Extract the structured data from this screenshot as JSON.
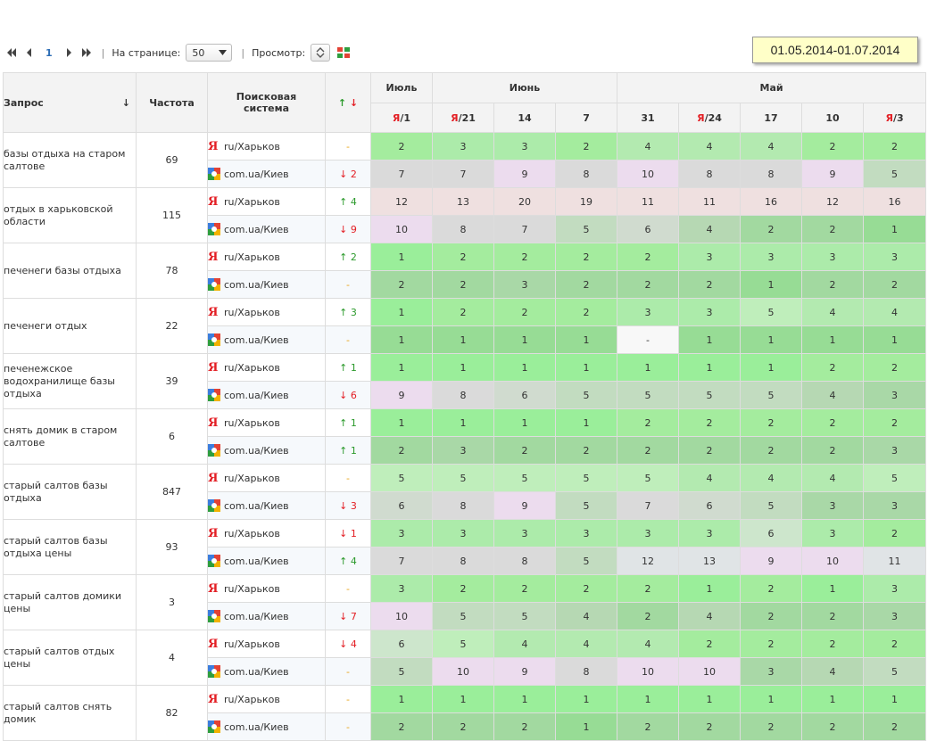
{
  "toolbar": {
    "page": "1",
    "per_page_label": "На странице:",
    "per_page_value": "50",
    "view_label": "Просмотр:"
  },
  "date_range": "01.05.2014-01.07.2014",
  "headers": {
    "query": "Запрос",
    "sort_icon": "arrow-down-icon",
    "sort_glyph": "↓",
    "frequency": "Частота",
    "engine": "Поисковая система",
    "change_up": "↑",
    "change_down": "↓",
    "months": [
      {
        "name": "Июль",
        "span": 1
      },
      {
        "name": "Июнь",
        "span": 3
      },
      {
        "name": "Май",
        "span": 5
      }
    ],
    "dates": [
      {
        "ya": true,
        "label": "/1"
      },
      {
        "ya": true,
        "label": "/21"
      },
      {
        "ya": false,
        "label": "14"
      },
      {
        "ya": false,
        "label": "7"
      },
      {
        "ya": false,
        "label": "31"
      },
      {
        "ya": true,
        "label": "/24"
      },
      {
        "ya": false,
        "label": "17"
      },
      {
        "ya": false,
        "label": "10"
      },
      {
        "ya": true,
        "label": "/3"
      }
    ],
    "ya_letter": "Я"
  },
  "engines": {
    "yandex": {
      "label": "ru/Харьков",
      "icon": "yandex-icon"
    },
    "google": {
      "label": "com.ua/Киев",
      "icon": "google-icon"
    }
  },
  "rows": [
    {
      "query": "базы отдыха на старом салтове",
      "freq": "69",
      "ya": {
        "change": "-",
        "dir": "none",
        "values": [
          "2",
          "3",
          "3",
          "2",
          "4",
          "4",
          "4",
          "2",
          "2"
        ]
      },
      "go": {
        "change": "2",
        "dir": "down",
        "values": [
          "7",
          "7",
          "9",
          "8",
          "10",
          "8",
          "8",
          "9",
          "5"
        ]
      }
    },
    {
      "query": "отдых в харьковской области",
      "freq": "115",
      "ya": {
        "change": "4",
        "dir": "up",
        "values": [
          "12",
          "13",
          "20",
          "19",
          "11",
          "11",
          "16",
          "12",
          "16"
        ]
      },
      "go": {
        "change": "9",
        "dir": "down",
        "values": [
          "10",
          "8",
          "7",
          "5",
          "6",
          "4",
          "2",
          "2",
          "1"
        ]
      }
    },
    {
      "query": "печенеги базы отдыха",
      "freq": "78",
      "ya": {
        "change": "2",
        "dir": "up",
        "values": [
          "1",
          "2",
          "2",
          "2",
          "2",
          "3",
          "3",
          "3",
          "3"
        ]
      },
      "go": {
        "change": "-",
        "dir": "none",
        "values": [
          "2",
          "2",
          "3",
          "2",
          "2",
          "2",
          "1",
          "2",
          "2"
        ]
      }
    },
    {
      "query": "печенеги отдых",
      "freq": "22",
      "ya": {
        "change": "3",
        "dir": "up",
        "values": [
          "1",
          "2",
          "2",
          "2",
          "3",
          "3",
          "5",
          "4",
          "4"
        ]
      },
      "go": {
        "change": "-",
        "dir": "none",
        "values": [
          "1",
          "1",
          "1",
          "1",
          "-",
          "1",
          "1",
          "1",
          "1"
        ]
      }
    },
    {
      "query": "печенежское водохранилище базы отдыха",
      "freq": "39",
      "ya": {
        "change": "1",
        "dir": "up",
        "values": [
          "1",
          "1",
          "1",
          "1",
          "1",
          "1",
          "1",
          "2",
          "2"
        ]
      },
      "go": {
        "change": "6",
        "dir": "down",
        "values": [
          "9",
          "8",
          "6",
          "5",
          "5",
          "5",
          "5",
          "4",
          "3"
        ]
      }
    },
    {
      "query": "снять домик в старом салтове",
      "freq": "6",
      "ya": {
        "change": "1",
        "dir": "up",
        "values": [
          "1",
          "1",
          "1",
          "1",
          "2",
          "2",
          "2",
          "2",
          "2"
        ]
      },
      "go": {
        "change": "1",
        "dir": "up",
        "values": [
          "2",
          "3",
          "2",
          "2",
          "2",
          "2",
          "2",
          "2",
          "3"
        ]
      }
    },
    {
      "query": "старый салтов базы отдыха",
      "freq": "847",
      "ya": {
        "change": "-",
        "dir": "none",
        "values": [
          "5",
          "5",
          "5",
          "5",
          "5",
          "4",
          "4",
          "4",
          "5"
        ]
      },
      "go": {
        "change": "3",
        "dir": "down",
        "values": [
          "6",
          "8",
          "9",
          "5",
          "7",
          "6",
          "5",
          "3",
          "3"
        ]
      }
    },
    {
      "query": "старый салтов базы отдыха цены",
      "freq": "93",
      "ya": {
        "change": "1",
        "dir": "down",
        "values": [
          "3",
          "3",
          "3",
          "3",
          "3",
          "3",
          "6",
          "3",
          "2"
        ]
      },
      "go": {
        "change": "4",
        "dir": "up",
        "values": [
          "7",
          "8",
          "8",
          "5",
          "12",
          "13",
          "9",
          "10",
          "11"
        ]
      }
    },
    {
      "query": "старый салтов домики цены",
      "freq": "3",
      "ya": {
        "change": "-",
        "dir": "none",
        "values": [
          "3",
          "2",
          "2",
          "2",
          "2",
          "1",
          "2",
          "1",
          "3"
        ]
      },
      "go": {
        "change": "7",
        "dir": "down",
        "values": [
          "10",
          "5",
          "5",
          "4",
          "2",
          "4",
          "2",
          "2",
          "3"
        ]
      }
    },
    {
      "query": "старый салтов отдых цены",
      "freq": "4",
      "ya": {
        "change": "4",
        "dir": "down",
        "values": [
          "6",
          "5",
          "4",
          "4",
          "4",
          "2",
          "2",
          "2",
          "2"
        ]
      },
      "go": {
        "change": "-",
        "dir": "none",
        "values": [
          "5",
          "10",
          "9",
          "8",
          "10",
          "10",
          "3",
          "4",
          "5"
        ]
      }
    },
    {
      "query": "старый салтов снять домик",
      "freq": "82",
      "ya": {
        "change": "-",
        "dir": "none",
        "values": [
          "1",
          "1",
          "1",
          "1",
          "1",
          "1",
          "1",
          "1",
          "1"
        ]
      },
      "go": {
        "change": "-",
        "dir": "none",
        "values": [
          "2",
          "2",
          "2",
          "1",
          "2",
          "2",
          "2",
          "2",
          "2"
        ]
      }
    }
  ]
}
